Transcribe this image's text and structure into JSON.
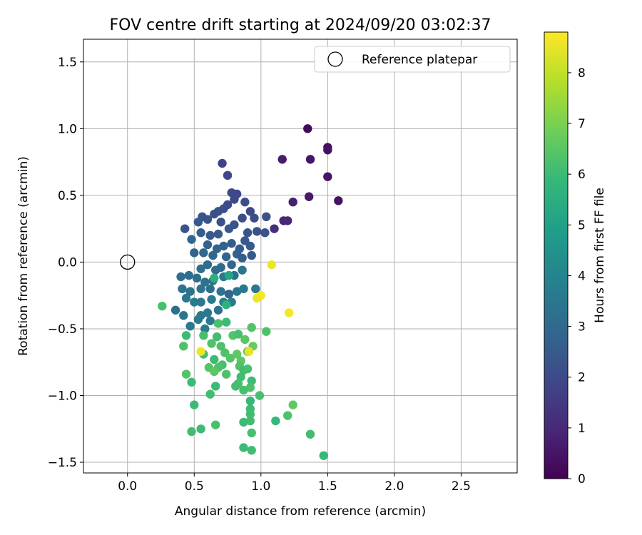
{
  "chart_data": {
    "type": "scatter",
    "title": "FOV centre drift starting at 2024/09/20 03:02:37",
    "xlabel": "Angular distance from reference (arcmin)",
    "ylabel": "Rotation from reference (arcmin)",
    "xlim": [
      -0.33,
      2.92
    ],
    "ylim": [
      -1.58,
      1.67
    ],
    "x_ticks": [
      0.0,
      0.5,
      1.0,
      1.5,
      2.0,
      2.5
    ],
    "x_tick_labels": [
      "0.0",
      "0.5",
      "1.0",
      "1.5",
      "2.0",
      "2.5"
    ],
    "y_ticks": [
      -1.5,
      -1.0,
      -0.5,
      0.0,
      0.5,
      1.0,
      1.5
    ],
    "y_tick_labels": [
      "−1.5",
      "−1.0",
      "−0.5",
      "0.0",
      "0.5",
      "1.0",
      "1.5"
    ],
    "grid": true,
    "legend": {
      "placement": "upper-right",
      "entries": [
        {
          "label": "Reference platepar",
          "marker": "open-circle",
          "color": "#000000"
        }
      ]
    },
    "reference_point": {
      "x": 0.0,
      "y": 0.0
    },
    "colorbar": {
      "label": "Hours from first FF file",
      "colormap": "viridis",
      "range": [
        0,
        8.8
      ],
      "ticks": [
        0,
        1,
        2,
        3,
        4,
        5,
        6,
        7,
        8
      ],
      "tick_labels": [
        "0",
        "1",
        "2",
        "3",
        "4",
        "5",
        "6",
        "7",
        "8"
      ],
      "colors": [
        "#440154",
        "#482878",
        "#3e4989",
        "#31688e",
        "#26828e",
        "#1f9e89",
        "#35b779",
        "#6ece58",
        "#b5de2b",
        "#fde725"
      ]
    },
    "series": [
      {
        "points": [
          [
            1.35,
            1.0,
            0.2
          ],
          [
            1.5,
            0.86,
            0.3
          ],
          [
            1.5,
            0.84,
            0.4
          ],
          [
            1.37,
            0.77,
            0.5
          ],
          [
            1.16,
            0.77,
            0.7
          ],
          [
            1.5,
            0.64,
            0.5
          ],
          [
            1.58,
            0.46,
            0.4
          ],
          [
            1.36,
            0.49,
            0.6
          ],
          [
            1.24,
            0.45,
            0.8
          ],
          [
            1.17,
            0.31,
            0.9
          ],
          [
            1.2,
            0.31,
            1.0
          ],
          [
            1.1,
            0.25,
            1.2
          ],
          [
            0.71,
            0.74,
            1.8
          ],
          [
            0.75,
            0.65,
            1.9
          ],
          [
            0.78,
            0.52,
            2.0
          ],
          [
            0.82,
            0.51,
            1.9
          ],
          [
            0.8,
            0.47,
            2.0
          ],
          [
            0.88,
            0.45,
            2.1
          ],
          [
            0.75,
            0.43,
            2.0
          ],
          [
            0.72,
            0.4,
            2.1
          ],
          [
            0.68,
            0.38,
            2.2
          ],
          [
            0.65,
            0.36,
            2.2
          ],
          [
            0.56,
            0.34,
            2.3
          ],
          [
            0.6,
            0.32,
            2.3
          ],
          [
            0.53,
            0.3,
            2.4
          ],
          [
            0.7,
            0.3,
            2.2
          ],
          [
            0.86,
            0.33,
            2.1
          ],
          [
            0.92,
            0.38,
            2.0
          ],
          [
            0.95,
            0.33,
            2.1
          ],
          [
            1.04,
            0.34,
            2.2
          ],
          [
            0.8,
            0.28,
            2.3
          ],
          [
            0.76,
            0.25,
            2.4
          ],
          [
            0.68,
            0.21,
            2.5
          ],
          [
            0.62,
            0.2,
            2.5
          ],
          [
            0.55,
            0.22,
            2.6
          ],
          [
            0.43,
            0.25,
            2.3
          ],
          [
            0.9,
            0.22,
            2.3
          ],
          [
            0.97,
            0.23,
            2.2
          ],
          [
            1.03,
            0.22,
            2.3
          ],
          [
            0.88,
            0.16,
            2.4
          ],
          [
            0.92,
            0.12,
            2.5
          ],
          [
            0.84,
            0.1,
            2.6
          ],
          [
            0.78,
            0.14,
            2.6
          ],
          [
            0.72,
            0.12,
            2.7
          ],
          [
            0.67,
            0.1,
            2.8
          ],
          [
            0.6,
            0.13,
            2.7
          ],
          [
            0.57,
            0.07,
            2.9
          ],
          [
            0.5,
            0.07,
            2.8
          ],
          [
            0.48,
            0.17,
            2.9
          ],
          [
            0.64,
            0.05,
            2.9
          ],
          [
            0.74,
            0.04,
            2.8
          ],
          [
            0.82,
            0.06,
            2.7
          ],
          [
            0.86,
            0.03,
            2.6
          ],
          [
            0.93,
            0.05,
            2.5
          ],
          [
            0.78,
            -0.02,
            2.9
          ],
          [
            0.7,
            -0.04,
            3.0
          ],
          [
            0.66,
            -0.06,
            3.0
          ],
          [
            0.6,
            -0.02,
            3.1
          ],
          [
            0.55,
            -0.05,
            3.2
          ],
          [
            0.52,
            -0.12,
            3.2
          ],
          [
            0.46,
            -0.1,
            3.1
          ],
          [
            0.4,
            -0.11,
            3.2
          ],
          [
            0.58,
            -0.15,
            3.3
          ],
          [
            0.64,
            -0.14,
            3.4
          ],
          [
            0.72,
            -0.11,
            3.5
          ],
          [
            0.8,
            -0.1,
            3.2
          ],
          [
            0.86,
            -0.06,
            3.4
          ],
          [
            0.41,
            -0.2,
            3.3
          ],
          [
            0.47,
            -0.22,
            3.4
          ],
          [
            0.55,
            -0.2,
            3.3
          ],
          [
            0.62,
            -0.2,
            3.2
          ],
          [
            0.7,
            -0.22,
            3.3
          ],
          [
            0.76,
            -0.24,
            2.8
          ],
          [
            0.82,
            -0.22,
            3.4
          ],
          [
            0.87,
            -0.2,
            3.6
          ],
          [
            0.96,
            -0.2,
            3.5
          ],
          [
            0.44,
            -0.27,
            3.5
          ],
          [
            0.5,
            -0.3,
            3.6
          ],
          [
            0.55,
            -0.3,
            3.6
          ],
          [
            0.63,
            -0.28,
            3.7
          ],
          [
            0.72,
            -0.3,
            3.8
          ],
          [
            0.78,
            -0.3,
            3.7
          ],
          [
            0.36,
            -0.36,
            3.2
          ],
          [
            0.42,
            -0.4,
            3.4
          ],
          [
            0.55,
            -0.4,
            3.5
          ],
          [
            0.6,
            -0.38,
            3.6
          ],
          [
            0.68,
            -0.36,
            3.4
          ],
          [
            0.53,
            -0.43,
            3.6
          ],
          [
            0.62,
            -0.44,
            3.5
          ],
          [
            0.47,
            -0.48,
            3.6
          ],
          [
            0.58,
            -0.5,
            3.7
          ],
          [
            0.65,
            -0.12,
            5.5
          ],
          [
            0.76,
            -0.1,
            5.2
          ],
          [
            0.74,
            -0.32,
            5.6
          ],
          [
            0.68,
            -0.46,
            6.2
          ],
          [
            0.74,
            -0.45,
            6.0
          ],
          [
            0.26,
            -0.33,
            6.2
          ],
          [
            0.44,
            -0.55,
            6.0
          ],
          [
            0.57,
            -0.55,
            6.2
          ],
          [
            0.67,
            -0.56,
            6.1
          ],
          [
            0.63,
            -0.61,
            6.3
          ],
          [
            0.7,
            -0.63,
            6.3
          ],
          [
            0.79,
            -0.55,
            6.4
          ],
          [
            0.83,
            -0.54,
            6.2
          ],
          [
            0.93,
            -0.49,
            6.4
          ],
          [
            1.04,
            -0.52,
            6.3
          ],
          [
            0.88,
            -0.58,
            6.5
          ],
          [
            0.42,
            -0.63,
            6.3
          ],
          [
            0.57,
            -0.69,
            6.1
          ],
          [
            0.73,
            -0.68,
            6.3
          ],
          [
            0.77,
            -0.72,
            6.4
          ],
          [
            0.82,
            -0.69,
            6.6
          ],
          [
            0.85,
            -0.74,
            6.5
          ],
          [
            0.9,
            -0.67,
            6.4
          ],
          [
            0.94,
            -0.63,
            6.7
          ],
          [
            0.65,
            -0.73,
            6.0
          ],
          [
            0.71,
            -0.77,
            6.2
          ],
          [
            0.68,
            -0.79,
            6.3
          ],
          [
            0.61,
            -0.79,
            6.4
          ],
          [
            0.84,
            -0.78,
            6.3
          ],
          [
            0.87,
            -0.81,
            6.1
          ],
          [
            0.9,
            -0.8,
            6.2
          ],
          [
            0.44,
            -0.84,
            6.4
          ],
          [
            0.65,
            -0.82,
            6.5
          ],
          [
            0.74,
            -0.84,
            6.3
          ],
          [
            0.48,
            -0.9,
            6.0
          ],
          [
            0.66,
            -0.93,
            6.0
          ],
          [
            0.85,
            -0.86,
            6.1
          ],
          [
            0.93,
            -0.89,
            6.0
          ],
          [
            0.83,
            -0.91,
            6.2
          ],
          [
            0.81,
            -0.93,
            6.1
          ],
          [
            0.92,
            -0.94,
            6.3
          ],
          [
            0.62,
            -0.99,
            6.1
          ],
          [
            0.87,
            -0.96,
            6.2
          ],
          [
            0.99,
            -1.0,
            6.2
          ],
          [
            0.5,
            -1.07,
            6.0
          ],
          [
            1.24,
            -1.07,
            6.6
          ],
          [
            0.92,
            -1.04,
            5.9
          ],
          [
            0.92,
            -1.1,
            6.0
          ],
          [
            0.92,
            -1.14,
            6.1
          ],
          [
            1.2,
            -1.15,
            6.3
          ],
          [
            1.11,
            -1.19,
            5.9
          ],
          [
            0.87,
            -1.2,
            6.0
          ],
          [
            0.92,
            -1.19,
            6.1
          ],
          [
            0.66,
            -1.22,
            6.2
          ],
          [
            0.55,
            -1.25,
            6.0
          ],
          [
            0.48,
            -1.27,
            6.1
          ],
          [
            0.93,
            -1.28,
            6.2
          ],
          [
            1.37,
            -1.29,
            6.1
          ],
          [
            0.87,
            -1.39,
            6.0
          ],
          [
            0.93,
            -1.41,
            6.1
          ],
          [
            1.47,
            -1.45,
            5.9
          ],
          [
            1.08,
            -0.02,
            8.6
          ],
          [
            1.0,
            -0.25,
            8.7
          ],
          [
            0.97,
            -0.27,
            8.6
          ],
          [
            1.21,
            -0.38,
            8.7
          ],
          [
            0.91,
            -0.67,
            8.5
          ],
          [
            0.55,
            -0.67,
            8.6
          ]
        ]
      }
    ]
  }
}
